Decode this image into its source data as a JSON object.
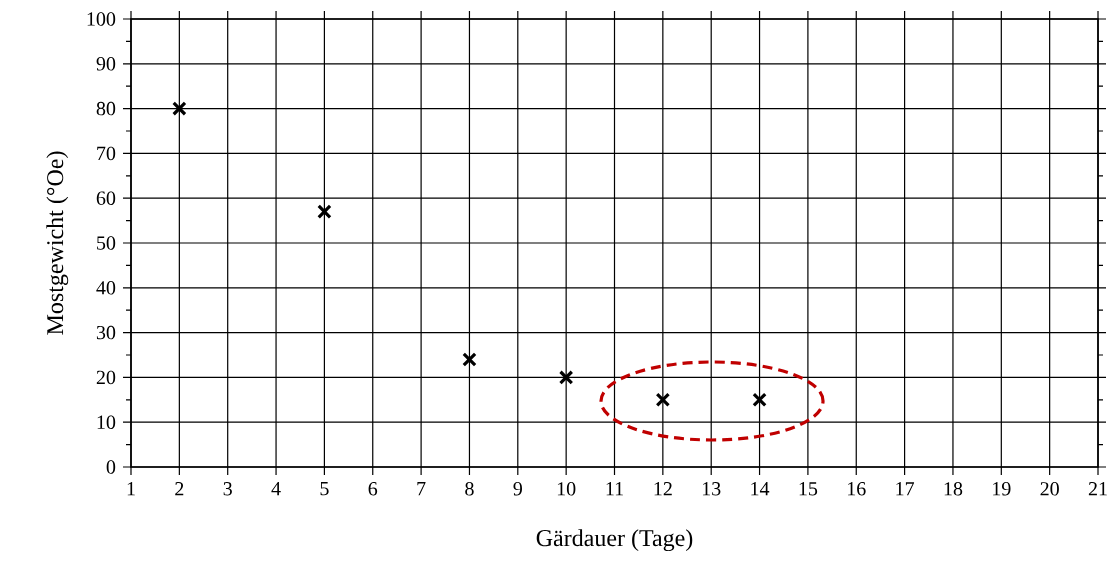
{
  "chart_data": {
    "type": "scatter",
    "xlabel": "Gärdauer (Tage)",
    "ylabel": "Mostgewicht (°Oe)",
    "x": [
      2,
      5,
      8,
      10,
      12,
      14
    ],
    "values": [
      80,
      57,
      24,
      20,
      15,
      15
    ],
    "color": "#000000",
    "marker": "cross",
    "xlim": [
      1,
      21
    ],
    "xticks": [
      1,
      2,
      3,
      4,
      5,
      6,
      7,
      8,
      9,
      10,
      11,
      12,
      13,
      14,
      15,
      16,
      17,
      18,
      19,
      20,
      21
    ],
    "ylim": [
      0,
      100
    ],
    "yticks": [
      0,
      {
        "value": 5,
        "label": null
      },
      10,
      {
        "value": 15,
        "label": null
      },
      20,
      {
        "value": 25,
        "label": null
      },
      30,
      {
        "value": 35,
        "label": null
      },
      40,
      {
        "value": 45,
        "label": null
      },
      50,
      {
        "value": 55,
        "label": null
      },
      60,
      {
        "value": 65,
        "label": null
      },
      70,
      {
        "value": 75,
        "label": null
      },
      80,
      {
        "value": 85,
        "label": null
      },
      90,
      {
        "value": 95,
        "label": null
      },
      100
    ],
    "grid": true
  }
}
